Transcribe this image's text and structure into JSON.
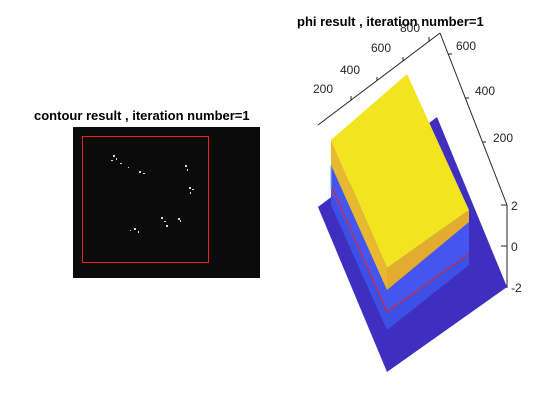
{
  "left_panel": {
    "title": "contour result , iteration number=1",
    "contour_color": "#e8201f"
  },
  "right_panel": {
    "title": "phi result , iteration number=1",
    "top_axis_ticks": [
      "200",
      "400",
      "600",
      "800"
    ],
    "right_axis_ticks": [
      "600",
      "400",
      "200"
    ],
    "z_axis_ticks": [
      "2",
      "0",
      "-2"
    ],
    "colors": {
      "plateau_top": "#f2e41f",
      "plateau_side": "#e8b830",
      "base_surface": "#4456ef",
      "base_dark": "#3f2fc0",
      "contour_line": "#e8201f"
    }
  }
}
